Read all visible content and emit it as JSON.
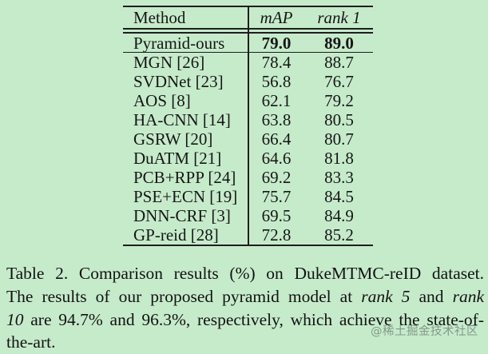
{
  "colors": {
    "background": "#c6ebcb",
    "text": "#161616",
    "rule": "#1e1e1e",
    "watermark": "rgba(110,125,116,0.75)"
  },
  "table": {
    "header": {
      "method": "Method",
      "map": "mAP",
      "rank1": "rank 1"
    },
    "highlight_row": {
      "method": "Pyramid-ours",
      "map": "79.0",
      "rank1": "89.0"
    },
    "rows": [
      {
        "method": "MGN [26]",
        "map": "78.4",
        "rank1": "88.7"
      },
      {
        "method": "SVDNet [23]",
        "map": "56.8",
        "rank1": "76.7"
      },
      {
        "method": "AOS [8]",
        "map": "62.1",
        "rank1": "79.2"
      },
      {
        "method": "HA-CNN [14]",
        "map": "63.8",
        "rank1": "80.5"
      },
      {
        "method": "GSRW [20]",
        "map": "66.4",
        "rank1": "80.7"
      },
      {
        "method": "DuATM [21]",
        "map": "64.6",
        "rank1": "81.8"
      },
      {
        "method": "PCB+RPP [24]",
        "map": "69.2",
        "rank1": "83.3"
      },
      {
        "method": "PSE+ECN [19]",
        "map": "75.7",
        "rank1": "84.5"
      },
      {
        "method": "DNN-CRF [3]",
        "map": "69.5",
        "rank1": "84.9"
      },
      {
        "method": "GP-reid [28]",
        "map": "72.8",
        "rank1": "85.2"
      }
    ]
  },
  "caption": {
    "lines": [
      [
        {
          "t": "Table 2. Comparison results (%) on DukeMTMC-reID dataset.",
          "i": false
        }
      ],
      [
        {
          "t": "The results of our proposed pyramid model at ",
          "i": false
        },
        {
          "t": "rank 5",
          "i": true
        },
        {
          "t": " and ",
          "i": false
        },
        {
          "t": "rank",
          "i": true
        }
      ],
      [
        {
          "t": "10",
          "i": true
        },
        {
          "t": " are 94.7% and 96.3%, respectively, which achieve the state-of-",
          "i": false
        }
      ],
      [
        {
          "t": "the-art.",
          "i": false
        }
      ]
    ]
  },
  "watermark": "@稀土掘金技术社区"
}
